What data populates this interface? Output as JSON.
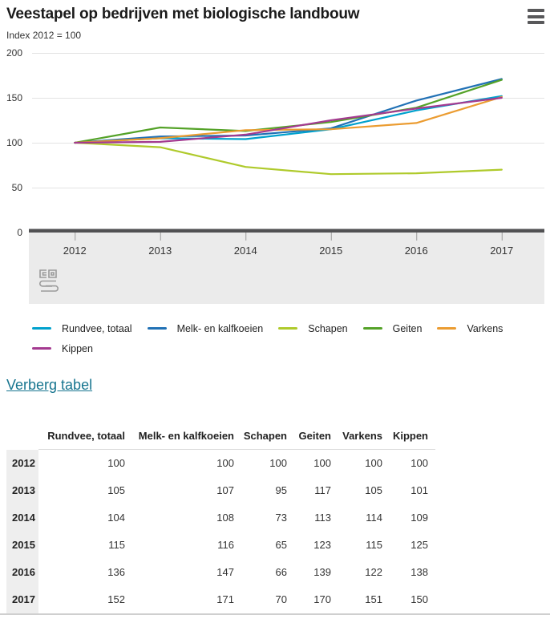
{
  "header": {
    "title": "Veestapel op bedrijven met biologische landbouw",
    "subtitle": "Index 2012 = 100"
  },
  "icons": {
    "menu": "hamburger-icon",
    "watermark": "cbs-logo-icon"
  },
  "link": {
    "label": "Verberg tabel"
  },
  "colors": {
    "accent_link": "#17758f",
    "axis_bar": "#515153",
    "plot_band": "#ebebeb",
    "grid": "#e3e3e3",
    "tick": "#9b9b9b"
  },
  "chart_data": {
    "type": "line",
    "title": "Veestapel op bedrijven met biologische landbouw",
    "subtitle": "Index 2012 = 100",
    "categories": [
      "2012",
      "2013",
      "2014",
      "2015",
      "2016",
      "2017"
    ],
    "series": [
      {
        "name": "Rundvee, totaal",
        "color": "#00a1cd",
        "values": [
          100,
          105,
          104,
          115,
          136,
          152
        ]
      },
      {
        "name": "Melk- en kalfkoeien",
        "color": "#2171b5",
        "values": [
          100,
          107,
          108,
          116,
          147,
          171
        ]
      },
      {
        "name": "Schapen",
        "color": "#afca2b",
        "values": [
          100,
          95,
          73,
          65,
          66,
          70
        ]
      },
      {
        "name": "Geiten",
        "color": "#54a228",
        "values": [
          100,
          117,
          113,
          123,
          139,
          170
        ]
      },
      {
        "name": "Varkens",
        "color": "#eb9c31",
        "values": [
          100,
          105,
          114,
          115,
          122,
          151
        ]
      },
      {
        "name": "Kippen",
        "color": "#a43a90",
        "values": [
          100,
          101,
          109,
          125,
          138,
          150
        ]
      }
    ],
    "ylim": [
      0,
      200
    ],
    "yticks": [
      0,
      50,
      100,
      150,
      200
    ],
    "grid": true,
    "legend_position": "bottom"
  },
  "table": {
    "columns": [
      "Rundvee, totaal",
      "Melk- en kalfkoeien",
      "Schapen",
      "Geiten",
      "Varkens",
      "Kippen"
    ],
    "rows": [
      {
        "year": "2012",
        "values": [
          100,
          100,
          100,
          100,
          100,
          100
        ]
      },
      {
        "year": "2013",
        "values": [
          105,
          107,
          95,
          117,
          105,
          101
        ]
      },
      {
        "year": "2014",
        "values": [
          104,
          108,
          73,
          113,
          114,
          109
        ]
      },
      {
        "year": "2015",
        "values": [
          115,
          116,
          65,
          123,
          115,
          125
        ]
      },
      {
        "year": "2016",
        "values": [
          136,
          147,
          66,
          139,
          122,
          138
        ]
      },
      {
        "year": "2017",
        "values": [
          152,
          171,
          70,
          170,
          151,
          150
        ]
      }
    ]
  }
}
